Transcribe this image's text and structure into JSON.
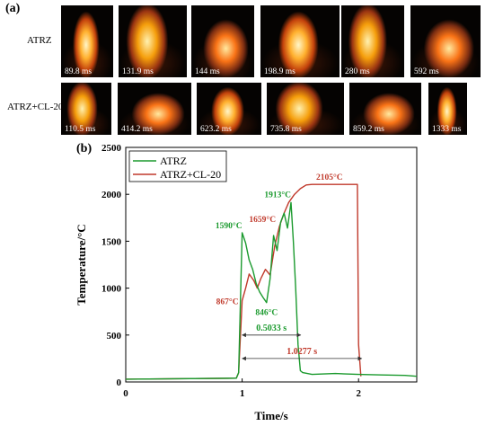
{
  "panel_a": {
    "label": "(a)",
    "rows": [
      {
        "label": "ATRZ",
        "frames": [
          "89.8 ms",
          "131.9 ms",
          "144 ms",
          "198.9 ms",
          "280 ms",
          "592 ms"
        ]
      },
      {
        "label": "ATRZ+CL-20",
        "frames": [
          "110.5 ms",
          "414.2 ms",
          "623.2 ms",
          "735.8 ms",
          "859.2 ms",
          "1333 ms"
        ]
      }
    ]
  },
  "panel_b": {
    "label": "(b)"
  },
  "chart_data": {
    "type": "line",
    "xlabel": "Time/s",
    "ylabel": "Temperature/°C",
    "xlim": [
      0,
      2.5
    ],
    "ylim": [
      0,
      2500
    ],
    "xticks": [
      "0",
      "1",
      "2"
    ],
    "yticks": [
      "0",
      "500",
      "1000",
      "1500",
      "2000",
      "2500"
    ],
    "legend_position": "top-left",
    "grid": false,
    "series": [
      {
        "name": "ATRZ",
        "color": "#1b9a2e",
        "x": [
          0,
          0.95,
          0.97,
          1.0,
          1.03,
          1.06,
          1.09,
          1.12,
          1.15,
          1.18,
          1.21,
          1.24,
          1.27,
          1.3,
          1.33,
          1.36,
          1.39,
          1.42,
          1.44,
          1.46,
          1.48,
          1.5,
          1.52,
          1.6,
          1.8,
          2.0,
          2.2,
          2.4,
          2.5
        ],
        "y": [
          30,
          40,
          100,
          1590,
          1480,
          1300,
          1200,
          1050,
          960,
          900,
          846,
          1100,
          1560,
          1400,
          1700,
          1800,
          1640,
          1913,
          1500,
          1000,
          400,
          120,
          100,
          80,
          90,
          80,
          75,
          70,
          60
        ]
      },
      {
        "name": "ATRZ+CL-20",
        "color": "#c0392b",
        "x": [
          0,
          0.95,
          0.97,
          1.0,
          1.03,
          1.06,
          1.1,
          1.13,
          1.16,
          1.2,
          1.24,
          1.28,
          1.32,
          1.36,
          1.4,
          1.45,
          1.5,
          1.55,
          1.6,
          1.7,
          1.8,
          1.9,
          1.99,
          2.0,
          2.02
        ],
        "y": [
          30,
          40,
          100,
          867,
          1000,
          1150,
          1080,
          1000,
          1100,
          1200,
          1140,
          1450,
          1659,
          1800,
          1913,
          2000,
          2060,
          2100,
          2105,
          2105,
          2105,
          2105,
          2105,
          400,
          60
        ]
      }
    ],
    "annotations": [
      {
        "text": "1590°C",
        "x": 1.0,
        "y": 1590,
        "color": "#1b9a2e"
      },
      {
        "text": "846°C",
        "x": 1.21,
        "y": 846,
        "color": "#1b9a2e"
      },
      {
        "text": "1913°C",
        "x": 1.42,
        "y": 1913,
        "color": "#1b9a2e"
      },
      {
        "text": "867°C",
        "x": 1.0,
        "y": 867,
        "color": "#c0392b"
      },
      {
        "text": "1659°C",
        "x": 1.32,
        "y": 1659,
        "color": "#c0392b"
      },
      {
        "text": "2105°C",
        "x": 1.75,
        "y": 2105,
        "color": "#c0392b"
      }
    ],
    "intervals": [
      {
        "label": "0.5033 s",
        "x_start": 1.0,
        "x_end": 1.5033,
        "y": 500,
        "color": "#1b9a2e"
      },
      {
        "label": "1.0277 s",
        "x_start": 1.0,
        "x_end": 2.0277,
        "y": 250,
        "color": "#c0392b"
      }
    ]
  }
}
